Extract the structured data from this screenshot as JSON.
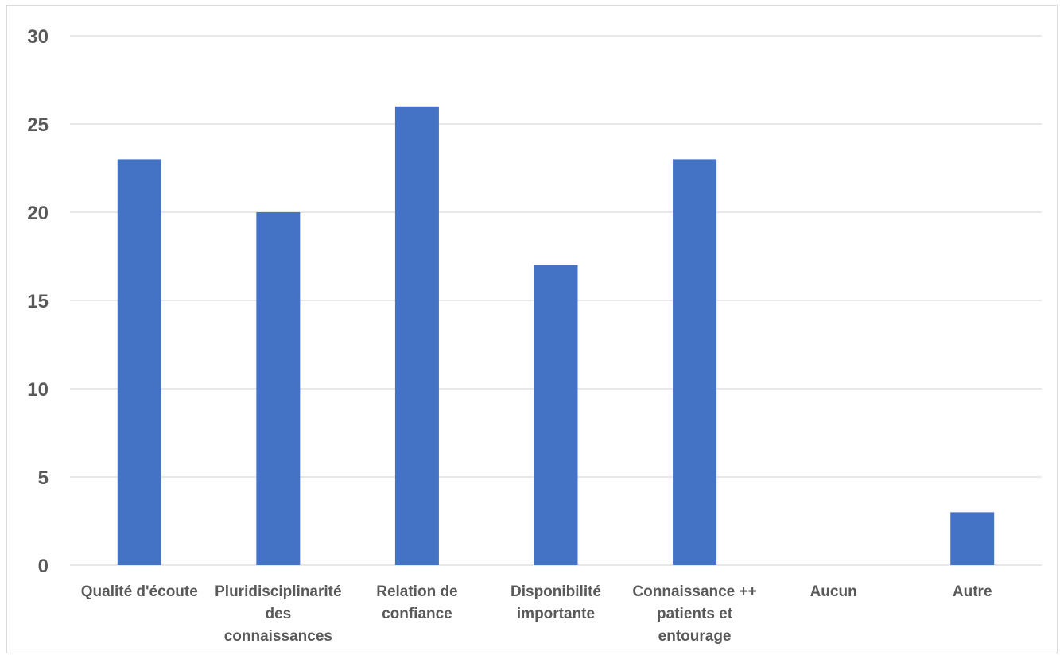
{
  "chart_data": {
    "type": "bar",
    "title": "",
    "xlabel": "",
    "ylabel": "",
    "categories": [
      [
        "Qualité d'écoute"
      ],
      [
        "Pluridisciplinarité",
        "des",
        "connaissances"
      ],
      [
        "Relation de",
        "confiance"
      ],
      [
        "Disponibilité",
        "importante"
      ],
      [
        "Connaissance ++",
        "patients et",
        "entourage"
      ],
      [
        "Aucun"
      ],
      [
        "Autre"
      ]
    ],
    "values": [
      23,
      20,
      26,
      17,
      23,
      0,
      3
    ],
    "ylim": [
      0,
      30
    ],
    "yticks": [
      "0",
      "5",
      "10",
      "15",
      "20",
      "25",
      "30"
    ],
    "grid": true,
    "legend": "none",
    "bar_color": "#4472c4",
    "grid_color": "#d9d9d9"
  }
}
